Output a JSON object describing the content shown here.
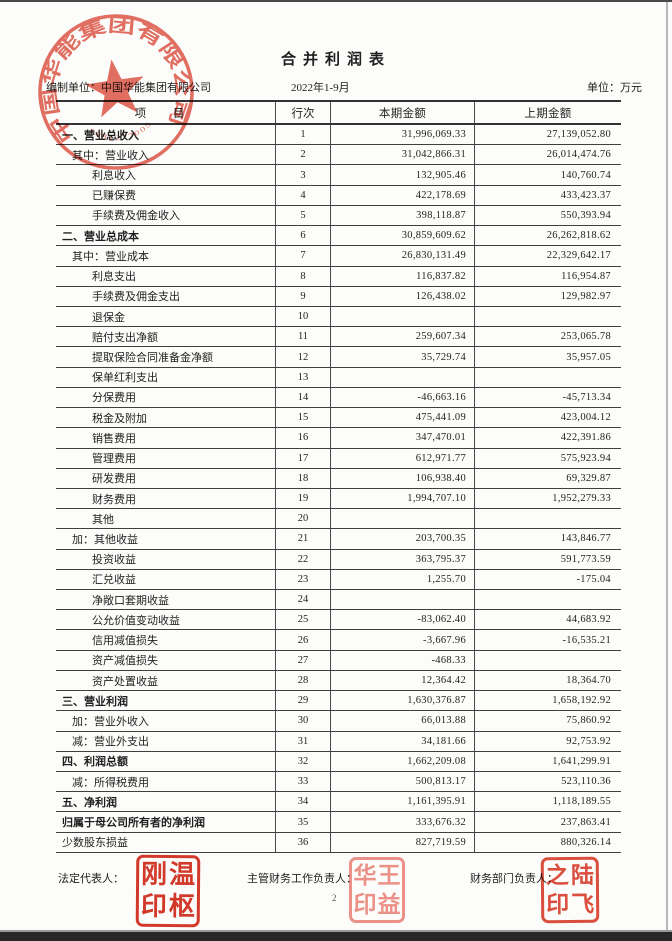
{
  "page": {
    "title": "合并利润表",
    "prepared_by": "编制单位：中国华能集团有限公司",
    "period": "2022年1-9月",
    "unit": "单位：万元",
    "page_number": "2"
  },
  "stamp": {
    "ring_text": "中国华能集团有限公司",
    "code": "1081277005",
    "color": "#dc4b3c"
  },
  "table": {
    "columns": [
      "项 目",
      "行次",
      "本期金额",
      "上期金额"
    ],
    "rows": [
      {
        "label": "一、营业总收入",
        "no": "1",
        "current": "31,996,069.33",
        "prior": "27,139,052.80",
        "level": 0,
        "bold": true
      },
      {
        "label": "其中：营业收入",
        "no": "2",
        "current": "31,042,866.31",
        "prior": "26,014,474.76",
        "level": 1,
        "bold": false
      },
      {
        "label": "利息收入",
        "no": "3",
        "current": "132,905.46",
        "prior": "140,760.74",
        "level": 2,
        "bold": false
      },
      {
        "label": "已赚保费",
        "no": "4",
        "current": "422,178.69",
        "prior": "433,423.37",
        "level": 2,
        "bold": false
      },
      {
        "label": "手续费及佣金收入",
        "no": "5",
        "current": "398,118.87",
        "prior": "550,393.94",
        "level": 2,
        "bold": false
      },
      {
        "label": "二、营业总成本",
        "no": "6",
        "current": "30,859,609.62",
        "prior": "26,262,818.62",
        "level": 0,
        "bold": true
      },
      {
        "label": "其中：营业成本",
        "no": "7",
        "current": "26,830,131.49",
        "prior": "22,329,642.17",
        "level": 1,
        "bold": false
      },
      {
        "label": "利息支出",
        "no": "8",
        "current": "116,837.82",
        "prior": "116,954.87",
        "level": 2,
        "bold": false
      },
      {
        "label": "手续费及佣金支出",
        "no": "9",
        "current": "126,438.02",
        "prior": "129,982.97",
        "level": 2,
        "bold": false
      },
      {
        "label": "退保金",
        "no": "10",
        "current": "",
        "prior": "",
        "level": 2,
        "bold": false
      },
      {
        "label": "赔付支出净额",
        "no": "11",
        "current": "259,607.34",
        "prior": "253,065.78",
        "level": 2,
        "bold": false
      },
      {
        "label": "提取保险合同准备金净额",
        "no": "12",
        "current": "35,729.74",
        "prior": "35,957.05",
        "level": 2,
        "bold": false
      },
      {
        "label": "保单红利支出",
        "no": "13",
        "current": "",
        "prior": "",
        "level": 2,
        "bold": false
      },
      {
        "label": "分保费用",
        "no": "14",
        "current": "-46,663.16",
        "prior": "-45,713.34",
        "level": 2,
        "bold": false
      },
      {
        "label": "税金及附加",
        "no": "15",
        "current": "475,441.09",
        "prior": "423,004.12",
        "level": 2,
        "bold": false
      },
      {
        "label": "销售费用",
        "no": "16",
        "current": "347,470.01",
        "prior": "422,391.86",
        "level": 2,
        "bold": false
      },
      {
        "label": "管理费用",
        "no": "17",
        "current": "612,971.77",
        "prior": "575,923.94",
        "level": 2,
        "bold": false
      },
      {
        "label": "研发费用",
        "no": "18",
        "current": "106,938.40",
        "prior": "69,329.87",
        "level": 2,
        "bold": false
      },
      {
        "label": "财务费用",
        "no": "19",
        "current": "1,994,707.10",
        "prior": "1,952,279.33",
        "level": 2,
        "bold": false
      },
      {
        "label": "其他",
        "no": "20",
        "current": "",
        "prior": "",
        "level": 2,
        "bold": false
      },
      {
        "label": "加：其他收益",
        "no": "21",
        "current": "203,700.35",
        "prior": "143,846.77",
        "level": 1,
        "bold": false
      },
      {
        "label": "投资收益",
        "no": "22",
        "current": "363,795.37",
        "prior": "591,773.59",
        "level": 2,
        "bold": false
      },
      {
        "label": "汇兑收益",
        "no": "23",
        "current": "1,255.70",
        "prior": "-175.04",
        "level": 2,
        "bold": false
      },
      {
        "label": "净敞口套期收益",
        "no": "24",
        "current": "",
        "prior": "",
        "level": 2,
        "bold": false
      },
      {
        "label": "公允价值变动收益",
        "no": "25",
        "current": "-83,062.40",
        "prior": "44,683.92",
        "level": 2,
        "bold": false
      },
      {
        "label": "信用减值损失",
        "no": "26",
        "current": "-3,667.96",
        "prior": "-16,535.21",
        "level": 2,
        "bold": false
      },
      {
        "label": "资产减值损失",
        "no": "27",
        "current": "-468.33",
        "prior": "",
        "level": 2,
        "bold": false
      },
      {
        "label": "资产处置收益",
        "no": "28",
        "current": "12,364.42",
        "prior": "18,364.70",
        "level": 2,
        "bold": false
      },
      {
        "label": "三、营业利润",
        "no": "29",
        "current": "1,630,376.87",
        "prior": "1,658,192.92",
        "level": 0,
        "bold": true
      },
      {
        "label": "加：营业外收入",
        "no": "30",
        "current": "66,013.88",
        "prior": "75,860.92",
        "level": 1,
        "bold": false
      },
      {
        "label": "减：营业外支出",
        "no": "31",
        "current": "34,181.66",
        "prior": "92,753.92",
        "level": 1,
        "bold": false
      },
      {
        "label": "四、利润总额",
        "no": "32",
        "current": "1,662,209.08",
        "prior": "1,641,299.91",
        "level": 0,
        "bold": true
      },
      {
        "label": "减：所得税费用",
        "no": "33",
        "current": "500,813.17",
        "prior": "523,110.36",
        "level": 1,
        "bold": false
      },
      {
        "label": "五、净利润",
        "no": "34",
        "current": "1,161,395.91",
        "prior": "1,118,189.55",
        "level": 0,
        "bold": true
      },
      {
        "label": "归属于母公司所有者的净利润",
        "no": "35",
        "current": "333,676.32",
        "prior": "237,863.41",
        "level": 0,
        "bold": true
      },
      {
        "label": "少数股东损益",
        "no": "36",
        "current": "827,719.59",
        "prior": "880,326.14",
        "level": 0,
        "bold": false
      }
    ]
  },
  "footer": {
    "legal_rep_label": "法定代表人：",
    "finance_head_label": "主管财务工作负责人：",
    "finance_dept_label": "财务部门负责人：",
    "seals": [
      {
        "chars": [
          "刚",
          "温",
          "印",
          "枢"
        ],
        "color": "#d5392b"
      },
      {
        "chars": [
          "华",
          "王",
          "印",
          "益"
        ],
        "color": "#ef938a"
      },
      {
        "chars": [
          "之",
          "陆",
          "印",
          "飞"
        ],
        "color": "#dd4f3e"
      }
    ]
  }
}
